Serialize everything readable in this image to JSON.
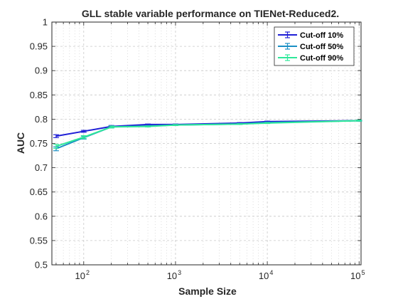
{
  "chart_data": {
    "type": "line",
    "title": "GLL stable variable performance on TIENet-Reduced2.",
    "xlabel": "Sample Size",
    "ylabel": "AUC",
    "xscale": "log",
    "xlim": [
      45,
      105000
    ],
    "ylim": [
      0.5,
      1.0
    ],
    "yticks": [
      0.5,
      0.55,
      0.6,
      0.65,
      0.7,
      0.75,
      0.8,
      0.85,
      0.9,
      0.95,
      1
    ],
    "ytick_labels": [
      "0.5",
      "0.55",
      "0.6",
      "0.65",
      "0.7",
      "0.75",
      "0.8",
      "0.85",
      "0.9",
      "0.95",
      "1"
    ],
    "xticks": [
      {
        "value": 100,
        "base": "10",
        "exp": "2"
      },
      {
        "value": 1000,
        "base": "10",
        "exp": "3"
      },
      {
        "value": 10000,
        "base": "10",
        "exp": "4"
      },
      {
        "value": 100000,
        "base": "10",
        "exp": "5"
      }
    ],
    "grid": true,
    "legend_position": "top-right",
    "x": [
      50,
      100,
      200,
      500,
      1000,
      5000,
      10000,
      100000
    ],
    "series": [
      {
        "name": "Cut-off 10%",
        "color": "#1f1fd6",
        "values": [
          0.765,
          0.775,
          0.785,
          0.789,
          0.789,
          0.792,
          0.795,
          0.797
        ],
        "errors": [
          0.003,
          0.002,
          0.002,
          0.001,
          0.001,
          0.001,
          0.001,
          0.001
        ]
      },
      {
        "name": "Cut-off 50%",
        "color": "#1a8fc4",
        "values": [
          0.739,
          0.762,
          0.784,
          0.786,
          0.788,
          0.79,
          0.793,
          0.797
        ],
        "errors": [
          0.004,
          0.003,
          0.002,
          0.001,
          0.001,
          0.001,
          0.001,
          0.001
        ]
      },
      {
        "name": "Cut-off 90%",
        "color": "#2ee89a",
        "values": [
          0.744,
          0.763,
          0.784,
          0.785,
          0.788,
          0.79,
          0.792,
          0.797
        ],
        "errors": [
          0.004,
          0.003,
          0.002,
          0.001,
          0.001,
          0.001,
          0.001,
          0.001
        ]
      }
    ]
  }
}
